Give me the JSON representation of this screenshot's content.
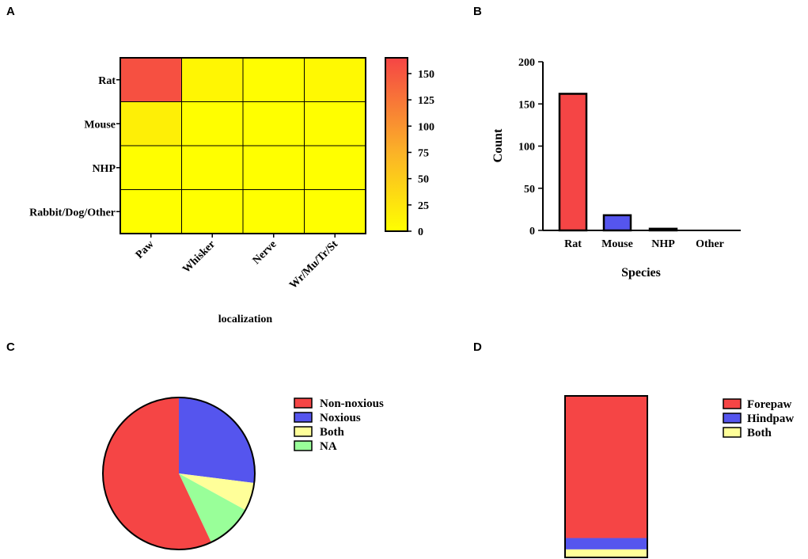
{
  "panel_labels": [
    "A",
    "B",
    "C",
    "D"
  ],
  "chart_data": [
    {
      "panel": "A",
      "type": "heatmap",
      "rows": [
        "Rat",
        "Mouse",
        "NHP",
        "Rabbit/Dog/Other"
      ],
      "columns": [
        "Paw",
        "Whisker",
        "Nerve",
        "Wr/Mu/Tr/St"
      ],
      "values": [
        [
          155,
          8,
          2,
          5
        ],
        [
          14,
          1,
          0,
          1
        ],
        [
          1,
          0,
          0,
          0
        ],
        [
          0,
          0,
          0,
          0
        ]
      ],
      "xlabel": "localization",
      "ylabel": "",
      "colorbar": {
        "range": [
          0,
          165
        ],
        "ticks": [
          0,
          25,
          50,
          75,
          100,
          125,
          150
        ],
        "colors": [
          "#ffff00",
          "#f54545"
        ]
      }
    },
    {
      "panel": "B",
      "type": "bar",
      "categories": [
        "Rat",
        "Mouse",
        "NHP",
        "Other"
      ],
      "values": [
        162,
        18,
        2,
        0
      ],
      "colors": [
        "#f54545",
        "#5555ee",
        "#ffff99",
        "#99ff99"
      ],
      "title": "",
      "xlabel": "Species",
      "ylabel": "Count",
      "ylim": [
        0,
        200
      ],
      "yticks": [
        0,
        50,
        100,
        150,
        200
      ]
    },
    {
      "panel": "C",
      "type": "pie",
      "labels": [
        "Non-noxious",
        "Noxious",
        "Both",
        "NA"
      ],
      "values": [
        57,
        27,
        6,
        10
      ],
      "colors": [
        "#f54545",
        "#5555ee",
        "#ffff99",
        "#99ff99"
      ],
      "legend_position": "right"
    },
    {
      "panel": "D",
      "type": "bar",
      "stacked": true,
      "categories": [
        ""
      ],
      "series": [
        {
          "name": "Forepaw",
          "values": [
            88
          ]
        },
        {
          "name": "Hindpaw",
          "values": [
            7
          ]
        },
        {
          "name": "Both",
          "values": [
            5
          ]
        }
      ],
      "colors": [
        "#f54545",
        "#5555ee",
        "#ffff99"
      ],
      "legend_position": "right"
    }
  ]
}
